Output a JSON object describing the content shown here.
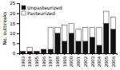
{
  "chart_data": {
    "type": "bar",
    "stacked": true,
    "categories": [
      "1993",
      "1994",
      "1995",
      "1996",
      "1997",
      "1998",
      "1999",
      "2000",
      "2001",
      "2002",
      "2003",
      "2004",
      "2005",
      "2006"
    ],
    "series": [
      {
        "name": "Unpasteurized",
        "color": "#111111",
        "values": [
          1,
          1,
          1,
          2,
          2,
          10,
          6,
          10,
          6,
          6,
          8,
          4,
          15,
          12
        ]
      },
      {
        "name": "Pasteurized",
        "color": "#ffffff",
        "values": [
          0,
          2,
          0,
          0,
          11,
          3,
          8,
          5,
          6,
          7,
          5,
          9,
          6,
          6
        ]
      }
    ],
    "ylabel": "No. outbreaks",
    "ylim": [
      0,
      25
    ],
    "yticks": [
      0,
      5,
      10,
      15,
      20,
      25
    ],
    "grid": false,
    "legend": "upper left"
  }
}
